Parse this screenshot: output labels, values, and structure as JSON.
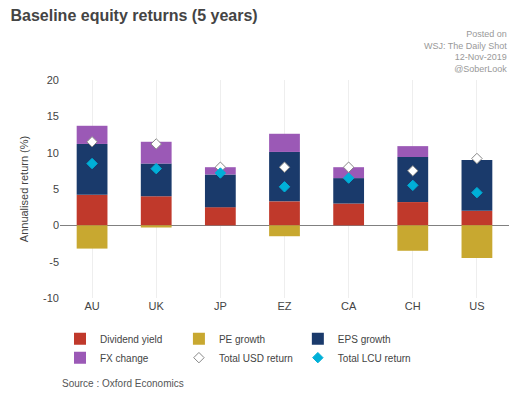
{
  "chart_data": {
    "type": "bar",
    "title": "Baseline equity returns (5 years)",
    "ylabel": "Annualised return (%)",
    "annotations": [
      "Posted on\nWSJ: The Daily Shot\n12-Nov-2019\n@SoberLook",
      "Source : Oxford Economics"
    ],
    "categories": [
      "AU",
      "UK",
      "JP",
      "EZ",
      "CA",
      "CH",
      "US"
    ],
    "stacked": true,
    "grid": "x",
    "legend": "bottom",
    "series": [
      {
        "name": "Dividend yield",
        "type": "bar",
        "color": "#c0392b",
        "values": [
          4.2,
          4.0,
          2.5,
          3.3,
          3.0,
          3.2,
          2.0
        ]
      },
      {
        "name": "PE growth",
        "type": "bar",
        "color": "#c8a830",
        "values": [
          -3.2,
          -0.3,
          0.0,
          -1.5,
          0.0,
          -3.5,
          -4.5
        ]
      },
      {
        "name": "EPS growth",
        "type": "bar",
        "color": "#1a3a6b",
        "values": [
          7.0,
          4.5,
          4.5,
          6.8,
          3.5,
          6.2,
          7.0
        ]
      },
      {
        "name": "FX change",
        "type": "bar",
        "color": "#9b59b6",
        "values": [
          2.5,
          3.0,
          1.0,
          2.5,
          1.5,
          1.5,
          0.0
        ]
      },
      {
        "name": "Total USD return",
        "type": "scatter",
        "marker": "diamond",
        "color": "#ffffff",
        "values": [
          11.5,
          11.2,
          8.0,
          8.0,
          8.0,
          7.5,
          9.2
        ]
      },
      {
        "name": "Total LCU return",
        "type": "scatter",
        "marker": "diamond",
        "color": "#00b0d8",
        "values": [
          8.5,
          7.8,
          7.2,
          5.3,
          6.5,
          5.5,
          4.5
        ]
      }
    ],
    "ylim": [
      -10,
      20
    ],
    "yticks": [
      -10,
      -5,
      0,
      5,
      10,
      15,
      20
    ]
  }
}
